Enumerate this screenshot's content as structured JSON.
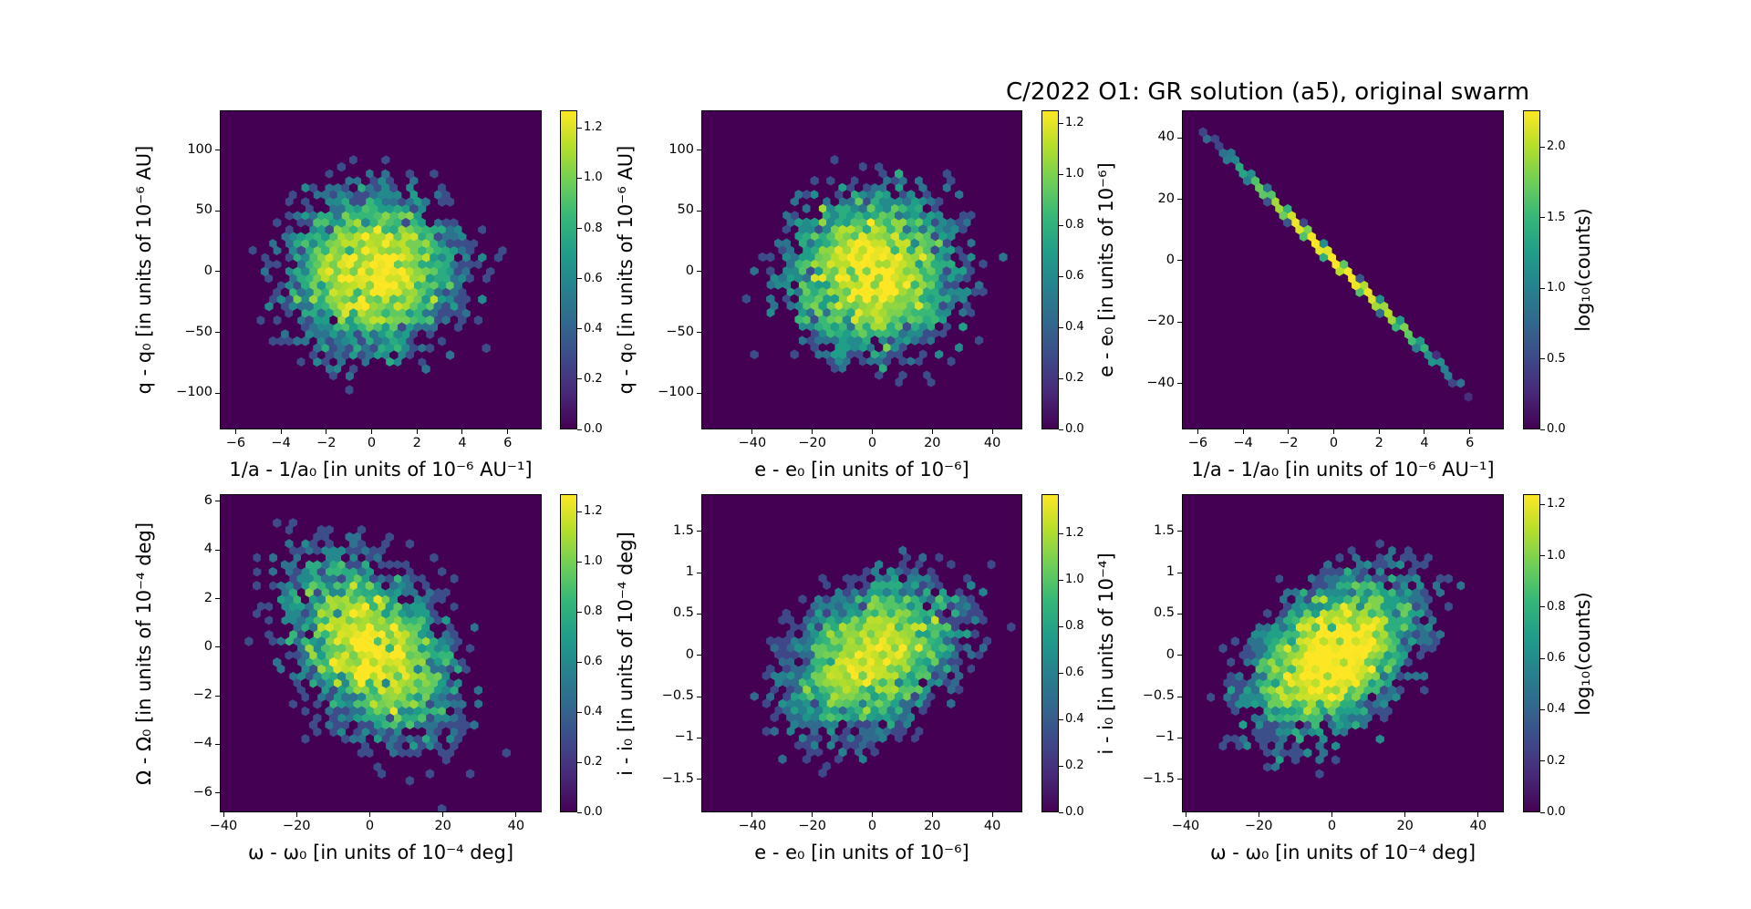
{
  "chart_data": [
    {
      "type": "heatmap",
      "subtype": "hexbin",
      "xlabel": "1/a - 1/a₀ [in units of 10⁻⁶ AU⁻¹]",
      "ylabel": "q - q₀ [in units of 10⁻⁶ AU]",
      "xlim": [
        -6.7,
        7.5
      ],
      "ylim": [
        -130,
        133
      ],
      "xticks": [
        -6,
        -4,
        -2,
        0,
        2,
        4,
        6
      ],
      "yticks": [
        -100,
        -50,
        0,
        50,
        100
      ],
      "colorbar": {
        "label": "",
        "range": [
          0,
          1.27
        ],
        "ticks": [
          0.0,
          0.2,
          0.4,
          0.6,
          0.8,
          1.0,
          1.2
        ]
      }
    },
    {
      "type": "heatmap",
      "subtype": "hexbin",
      "xlabel": "e - e₀ [in units of 10⁻⁶]",
      "ylabel": "q - q₀ [in units of 10⁻⁶ AU]",
      "xlim": [
        -57,
        50
      ],
      "ylim": [
        -130,
        133
      ],
      "xticks": [
        -40,
        -20,
        0,
        20,
        40
      ],
      "yticks": [
        -100,
        -50,
        0,
        50,
        100
      ],
      "colorbar": {
        "label": "",
        "range": [
          0,
          1.25
        ],
        "ticks": [
          0.0,
          0.2,
          0.4,
          0.6,
          0.8,
          1.0,
          1.2
        ]
      }
    },
    {
      "type": "heatmap",
      "subtype": "hexbin",
      "title": "C/2022 O1: GR solution (a5), original swarm",
      "xlabel": "1/a - 1/a₀ [in units of 10⁻⁶ AU⁻¹]",
      "ylabel": "e - e₀ [in units of 10⁻⁶]",
      "xlim": [
        -6.7,
        7.5
      ],
      "ylim": [
        -55,
        49
      ],
      "xticks": [
        -6,
        -4,
        -2,
        0,
        2,
        4,
        6
      ],
      "yticks": [
        -40,
        -20,
        0,
        20,
        40
      ],
      "colorbar": {
        "label": "log₁₀(counts)",
        "range": [
          0,
          2.26
        ],
        "ticks": [
          0.0,
          0.5,
          1.0,
          1.5,
          2.0
        ]
      }
    },
    {
      "type": "heatmap",
      "subtype": "hexbin",
      "xlabel": "ω - ω₀ [in units of 10⁻⁴ deg]",
      "ylabel": "Ω - Ω₀ [in units of 10⁻⁴ deg]",
      "xlim": [
        -41,
        47
      ],
      "ylim": [
        -6.8,
        6.3
      ],
      "xticks": [
        -40,
        -20,
        0,
        20,
        40
      ],
      "yticks": [
        -6,
        -4,
        -2,
        0,
        2,
        4,
        6
      ],
      "colorbar": {
        "label": "",
        "range": [
          0,
          1.27
        ],
        "ticks": [
          0.0,
          0.2,
          0.4,
          0.6,
          0.8,
          1.0,
          1.2
        ]
      }
    },
    {
      "type": "heatmap",
      "subtype": "hexbin",
      "xlabel": "e - e₀ [in units of 10⁻⁶]",
      "ylabel": "i - i₀ [in units of 10⁻⁴ deg]",
      "xlim": [
        -57,
        50
      ],
      "ylim": [
        -1.9,
        1.95
      ],
      "xticks": [
        -40,
        -20,
        0,
        20,
        40
      ],
      "yticks": [
        -1.5,
        -1.0,
        -0.5,
        0.0,
        0.5,
        1.0,
        1.5
      ],
      "colorbar": {
        "label": "",
        "range": [
          0,
          1.37
        ],
        "ticks": [
          0.0,
          0.2,
          0.4,
          0.6,
          0.8,
          1.0,
          1.2
        ]
      }
    },
    {
      "type": "heatmap",
      "subtype": "hexbin",
      "xlabel": "ω - ω₀ [in units of 10⁻⁴ deg]",
      "ylabel": "i - i₀ [in units of 10⁻⁴]",
      "xlim": [
        -41,
        47
      ],
      "ylim": [
        -1.9,
        1.95
      ],
      "xticks": [
        -40,
        -20,
        0,
        20,
        40
      ],
      "yticks": [
        -1.5,
        -1.0,
        -0.5,
        0.0,
        0.5,
        1.0,
        1.5
      ],
      "colorbar": {
        "label": "log₁₀(counts)",
        "range": [
          0,
          1.24
        ],
        "ticks": [
          0.0,
          0.2,
          0.4,
          0.6,
          0.8,
          1.0,
          1.2
        ]
      }
    }
  ],
  "title": "C/2022 O1: GR solution (a5), original swarm",
  "colormap": "viridis"
}
